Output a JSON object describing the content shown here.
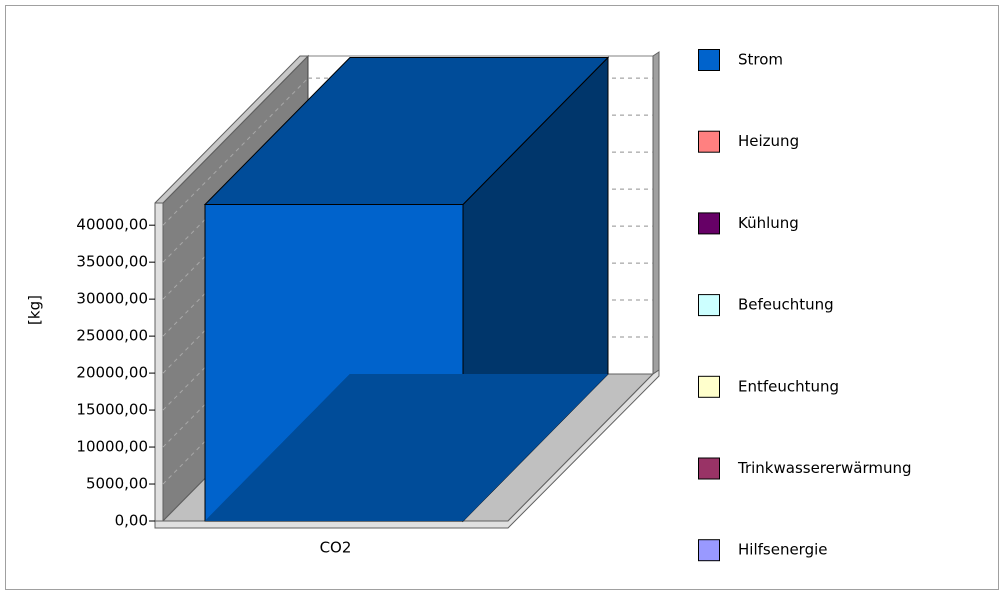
{
  "chart_data": {
    "type": "bar3d",
    "y_label": "[kg]",
    "categories": [
      "CO2"
    ],
    "series": [
      {
        "name": "Strom",
        "color": "#0063cc",
        "values": [
          42800
        ]
      },
      {
        "name": "Heizung",
        "color": "#ff8080",
        "values": [
          0
        ]
      },
      {
        "name": "Kühlung",
        "color": "#660066",
        "values": [
          0
        ]
      },
      {
        "name": "Befeuchtung",
        "color": "#ccffff",
        "values": [
          0
        ]
      },
      {
        "name": "Entfeuchtung",
        "color": "#ffffcc",
        "values": [
          0
        ]
      },
      {
        "name": "Trinkwassererwärmung",
        "color": "#993366",
        "values": [
          0
        ]
      },
      {
        "name": "Hilfsenergie",
        "color": "#9999ff",
        "values": [
          0
        ]
      }
    ],
    "ylim": [
      0,
      43000
    ],
    "yticks": [
      {
        "value": 0,
        "label": "0,00"
      },
      {
        "value": 5000,
        "label": "5000,00"
      },
      {
        "value": 10000,
        "label": "10000,00"
      },
      {
        "value": 15000,
        "label": "15000,00"
      },
      {
        "value": 20000,
        "label": "20000,00"
      },
      {
        "value": 25000,
        "label": "25000,00"
      },
      {
        "value": 30000,
        "label": "30000,00"
      },
      {
        "value": 35000,
        "label": "35000,00"
      },
      {
        "value": 40000,
        "label": "40000,00"
      }
    ],
    "grid": true,
    "legend": "right"
  }
}
